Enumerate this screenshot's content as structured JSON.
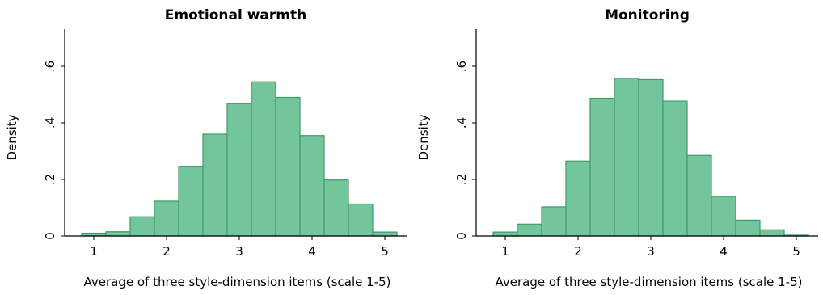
{
  "chart_data": [
    {
      "type": "bar",
      "title": "Emotional warmth",
      "xlabel": "Average of three style-dimension items (scale 1-5)",
      "ylabel": "Density",
      "xlim": [
        0.6,
        5.3
      ],
      "ylim": [
        0,
        0.72
      ],
      "xticks": [
        "1",
        "2",
        "3",
        "4",
        "5"
      ],
      "yticks": [
        "0",
        ".2",
        ".4",
        ".6"
      ],
      "bin_edges": [
        0.8333,
        1.1667,
        1.5,
        1.8333,
        2.1667,
        2.5,
        2.8333,
        3.1667,
        3.5,
        3.8333,
        4.1667,
        4.5,
        4.8333,
        5.1667
      ],
      "values": [
        0.01,
        0.015,
        0.068,
        0.123,
        0.245,
        0.36,
        0.468,
        0.545,
        0.49,
        0.355,
        0.198,
        0.113,
        0.014
      ]
    },
    {
      "type": "bar",
      "title": "Monitoring",
      "xlabel": "Average of three style-dimension items (scale 1-5)",
      "ylabel": "Density",
      "xlim": [
        0.6,
        5.3
      ],
      "ylim": [
        0,
        0.72
      ],
      "xticks": [
        "1",
        "2",
        "3",
        "4",
        "5"
      ],
      "yticks": [
        "0",
        ".2",
        ".4",
        ".6"
      ],
      "bin_edges": [
        0.8333,
        1.1667,
        1.5,
        1.8333,
        2.1667,
        2.5,
        2.8333,
        3.1667,
        3.5,
        3.8333,
        4.1667,
        4.5,
        4.8333,
        5.1667
      ],
      "values": [
        0.014,
        0.042,
        0.103,
        0.265,
        0.487,
        0.558,
        0.553,
        0.477,
        0.285,
        0.14,
        0.056,
        0.022,
        0.003
      ]
    }
  ],
  "colors": {
    "bar_fill": "#73c69b",
    "bar_edge": "#3f9a6c"
  }
}
